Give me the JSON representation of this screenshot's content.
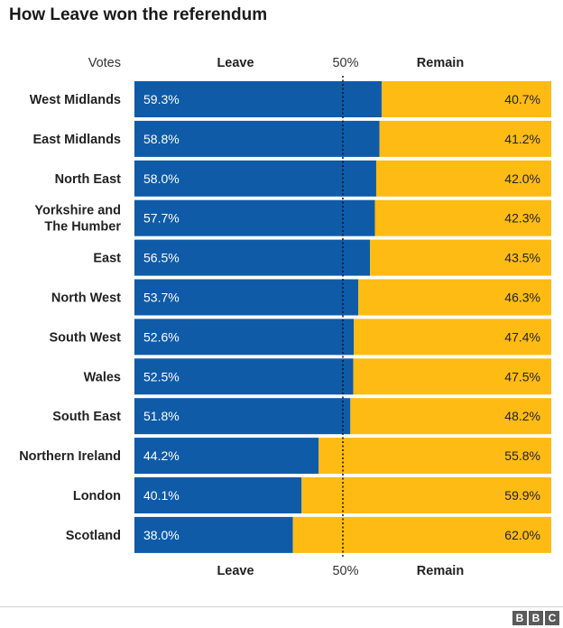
{
  "chart_data": {
    "type": "bar",
    "orientation": "horizontal-stacked",
    "title": "How Leave won the referendum",
    "row_header": "Votes",
    "midline_label": "50%",
    "categories": [
      "West Midlands",
      "East Midlands",
      "North East",
      "Yorkshire and The Humber",
      "East",
      "North West",
      "South West",
      "Wales",
      "South East",
      "Northern Ireland",
      "London",
      "Scotland"
    ],
    "category_lines": [
      [
        "West Midlands"
      ],
      [
        "East Midlands"
      ],
      [
        "North East"
      ],
      [
        "Yorkshire and",
        "The Humber"
      ],
      [
        "East"
      ],
      [
        "North West"
      ],
      [
        "South West"
      ],
      [
        "Wales"
      ],
      [
        "South East"
      ],
      [
        "Northern Ireland"
      ],
      [
        "London"
      ],
      [
        "Scotland"
      ]
    ],
    "series": [
      {
        "name": "Leave",
        "color": "#0f5ba8",
        "values": [
          59.3,
          58.8,
          58.0,
          57.7,
          56.5,
          53.7,
          52.6,
          52.5,
          51.8,
          44.2,
          40.1,
          38.0
        ],
        "labels": [
          "59.3%",
          "58.8%",
          "58.0%",
          "57.7%",
          "56.5%",
          "53.7%",
          "52.6%",
          "52.5%",
          "51.8%",
          "44.2%",
          "40.1%",
          "38.0%"
        ]
      },
      {
        "name": "Remain",
        "color": "#fdbb14",
        "values": [
          40.7,
          41.2,
          42.0,
          42.3,
          43.5,
          46.3,
          47.4,
          47.5,
          48.2,
          55.8,
          59.9,
          62.0
        ],
        "labels": [
          "40.7%",
          "41.2%",
          "42.0%",
          "42.3%",
          "43.5%",
          "46.3%",
          "47.4%",
          "47.5%",
          "48.2%",
          "55.8%",
          "59.9%",
          "62.0%"
        ]
      }
    ],
    "xlim": [
      0,
      100
    ],
    "legend": "top-and-bottom",
    "grid": false
  },
  "brand": {
    "letters": [
      "B",
      "B",
      "C"
    ]
  }
}
